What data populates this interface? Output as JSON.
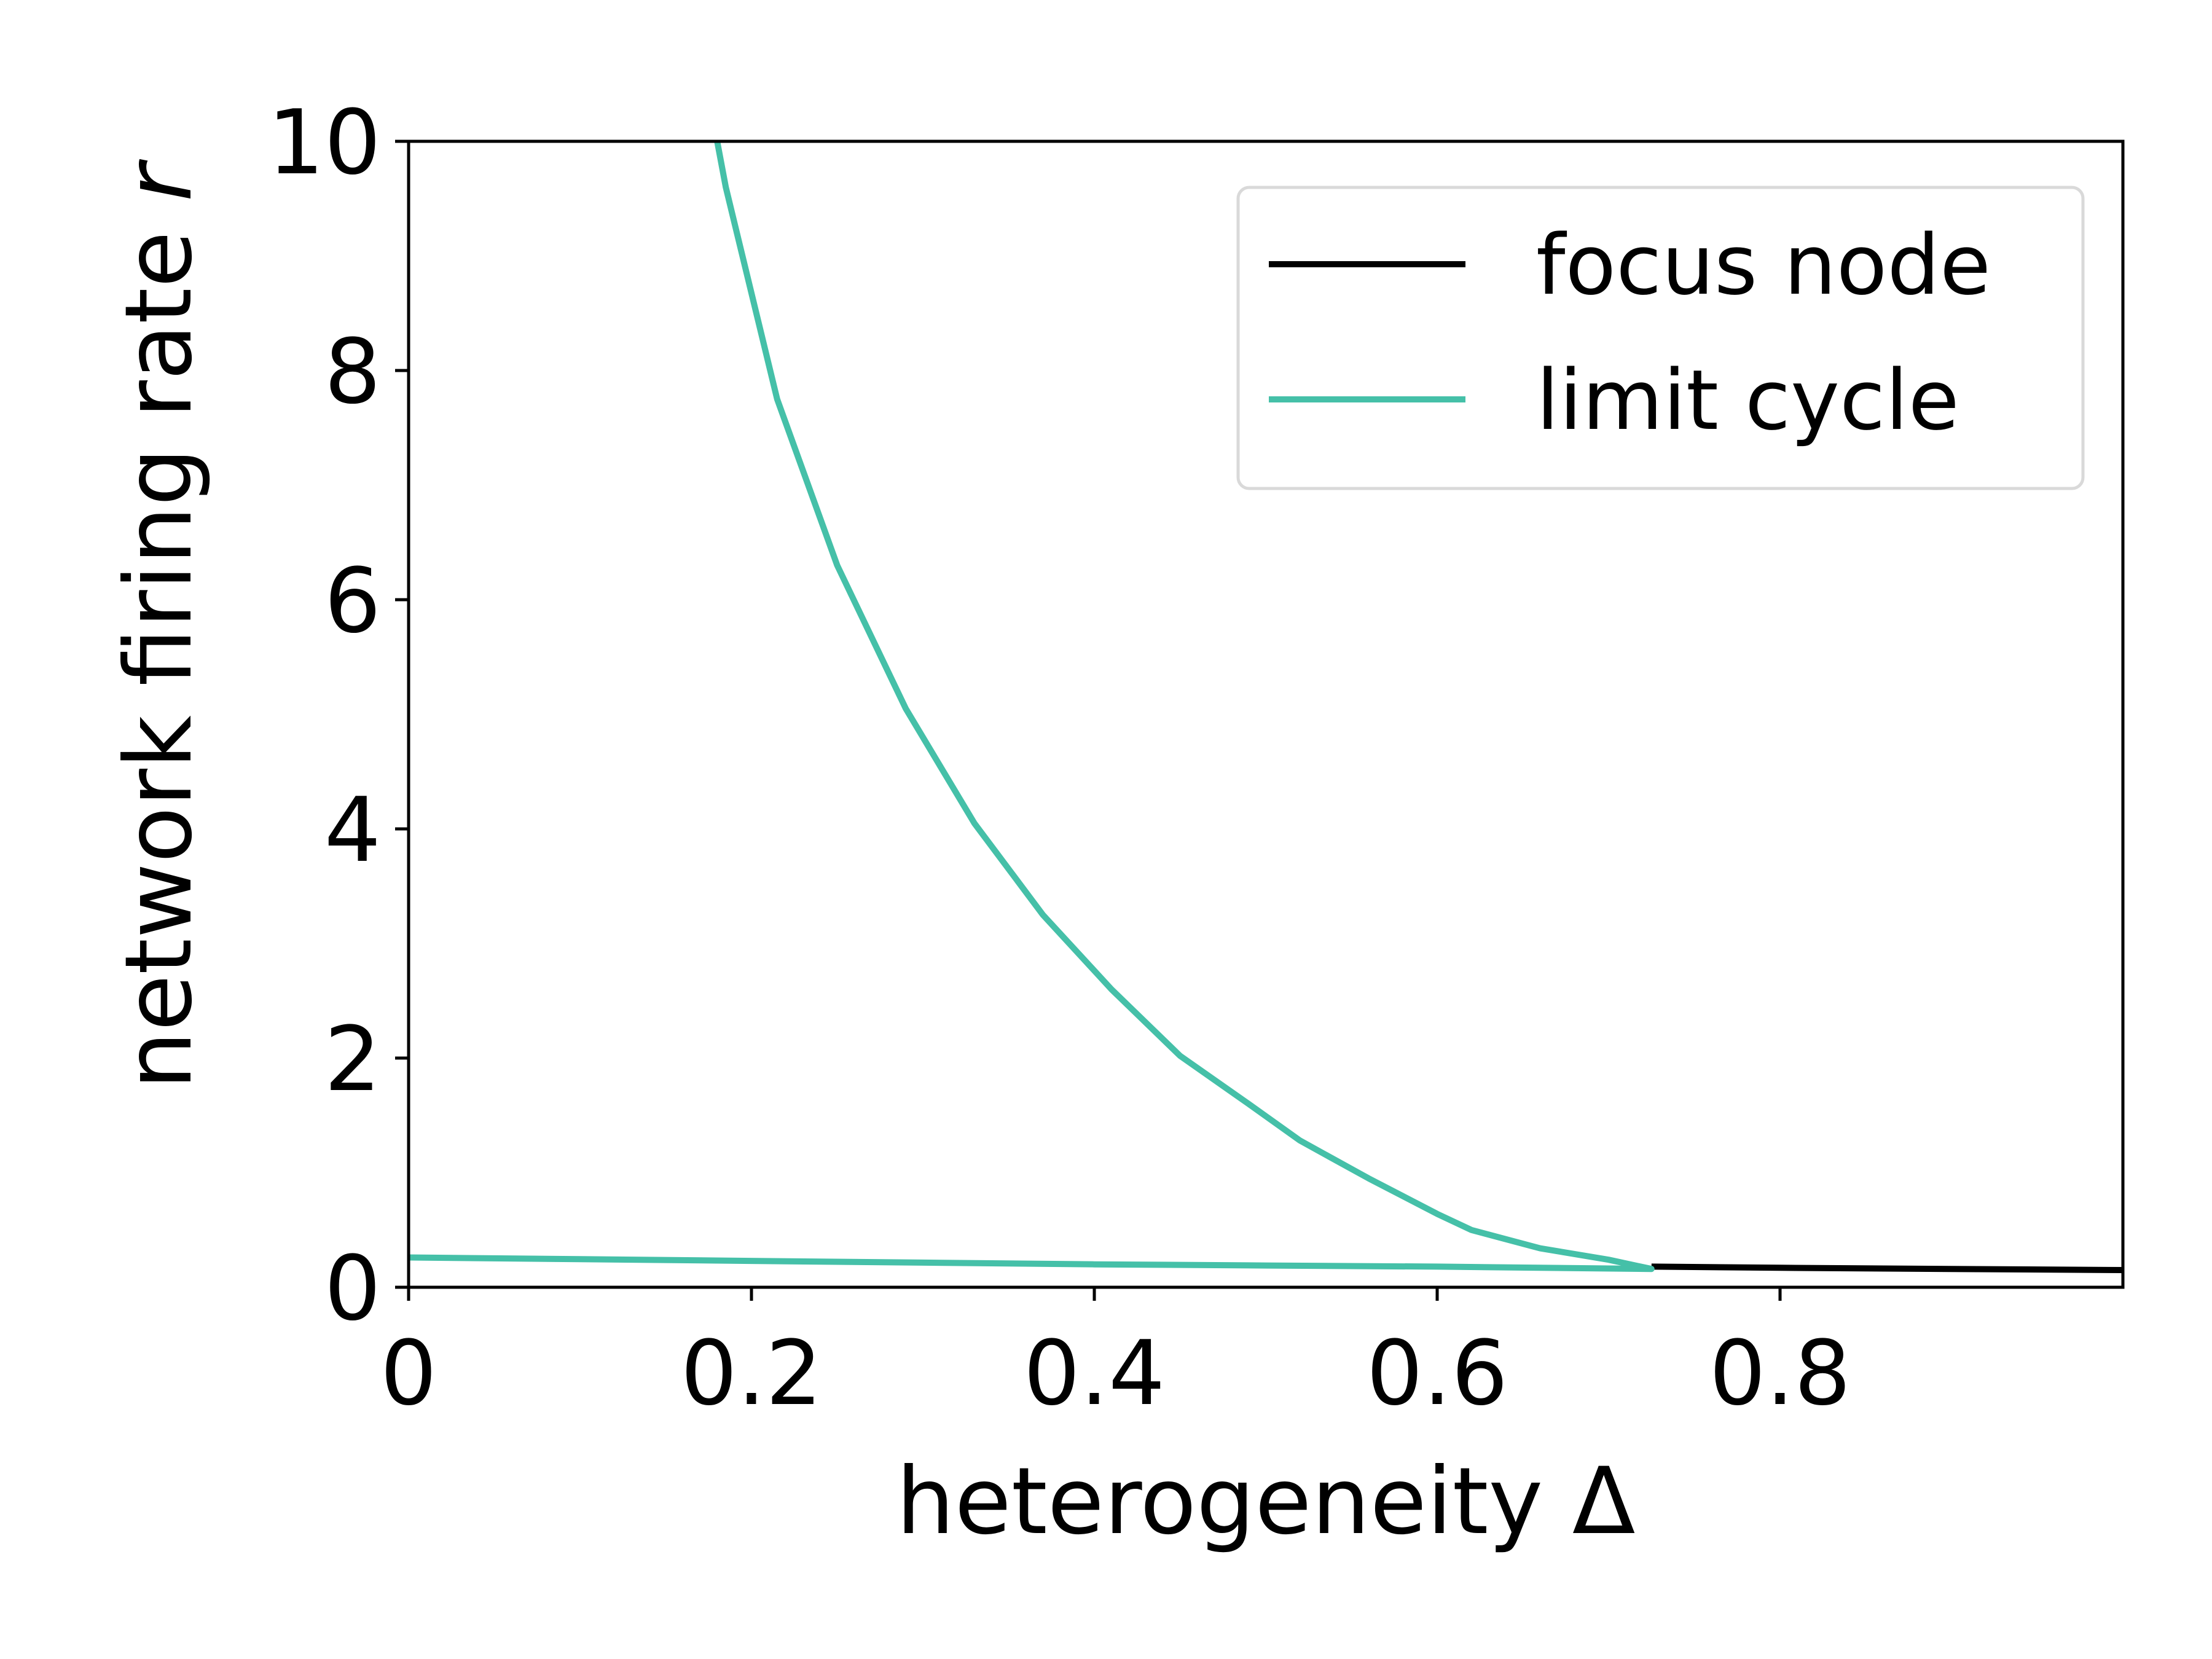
{
  "chart_data": {
    "type": "line",
    "title": "",
    "xlabel": "heterogeneity Δ",
    "ylabel_main": "network firing rate ",
    "ylabel_var": "r",
    "xlim": [
      0,
      1.0
    ],
    "ylim": [
      0,
      10
    ],
    "xticks": [
      0,
      0.2,
      0.4,
      0.6,
      0.8
    ],
    "xtick_labels": [
      "0",
      "0.2",
      "0.4",
      "0.6",
      "0.8"
    ],
    "yticks": [
      0,
      2,
      4,
      6,
      8,
      10
    ],
    "ytick_labels": [
      "0",
      "2",
      "4",
      "6",
      "8",
      "10"
    ],
    "grid": false,
    "legend_position": "top-right",
    "series": [
      {
        "name": "focus node",
        "color": "#000000",
        "branch": "fixed point",
        "points": [
          [
            0.725,
            0.18
          ],
          [
            0.8,
            0.17
          ],
          [
            0.9,
            0.16
          ],
          [
            1.0,
            0.15
          ]
        ]
      },
      {
        "name": "limit cycle",
        "color": "#45c0a8",
        "branch": "max/min envelope",
        "points": [
          [
            0.0,
            0.26
          ],
          [
            0.1,
            0.245
          ],
          [
            0.2,
            0.23
          ],
          [
            0.3,
            0.215
          ],
          [
            0.4,
            0.2
          ],
          [
            0.5,
            0.19
          ],
          [
            0.6,
            0.18
          ],
          [
            0.725,
            0.16
          ],
          [
            0.7,
            0.24
          ],
          [
            0.66,
            0.34
          ],
          [
            0.62,
            0.5
          ],
          [
            0.6,
            0.64
          ],
          [
            0.56,
            0.95
          ],
          [
            0.52,
            1.28
          ],
          [
            0.49,
            1.6
          ],
          [
            0.45,
            2.02
          ],
          [
            0.41,
            2.6
          ],
          [
            0.37,
            3.25
          ],
          [
            0.33,
            4.05
          ],
          [
            0.29,
            5.05
          ],
          [
            0.25,
            6.3
          ],
          [
            0.215,
            7.75
          ],
          [
            0.185,
            9.6
          ],
          [
            0.18,
            10.0
          ]
        ]
      }
    ]
  }
}
